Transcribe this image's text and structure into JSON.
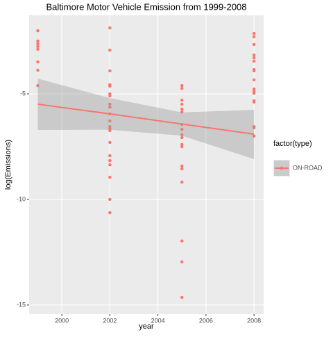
{
  "chart_data": {
    "type": "scatter",
    "title": "Baltimore Motor Vehicle Emission from 1999-2008",
    "x_label": "year",
    "y_label": "log(Emissions)",
    "legend_title": "factor(type)",
    "series": [
      {
        "name": "ON-ROAD",
        "color": "#F8766D",
        "x": [
          1999,
          1999,
          1999,
          1999,
          1999,
          1999,
          1999,
          1999,
          2002,
          2002,
          2002,
          2002,
          2002,
          2002,
          2002,
          2002,
          2002,
          2002,
          2002,
          2002,
          2002,
          2002,
          2002,
          2002,
          2002,
          2002,
          2002,
          2002,
          2002,
          2005,
          2005,
          2005,
          2005,
          2005,
          2005,
          2005,
          2005,
          2005,
          2005,
          2005,
          2005,
          2005,
          2005,
          2005,
          2005,
          2005,
          2005,
          2008,
          2008,
          2008,
          2008,
          2008,
          2008,
          2008,
          2008,
          2008,
          2008,
          2008,
          2008,
          2008,
          2008,
          2008,
          2008,
          2008
        ],
        "values": [
          -2.01,
          -2.5,
          -2.63,
          -2.76,
          -2.89,
          -3.49,
          -3.88,
          -4.61,
          -1.88,
          -2.93,
          -3.91,
          -4.57,
          -4.64,
          -5.0,
          -5.1,
          -5.49,
          -5.63,
          -5.95,
          -6.28,
          -6.55,
          -6.64,
          -6.74,
          -7.3,
          -7.93,
          -8.16,
          -8.36,
          -8.95,
          -10.0,
          -10.63,
          -4.61,
          -4.74,
          -5.3,
          -5.49,
          -5.72,
          -5.86,
          -6.45,
          -6.68,
          -6.94,
          -7.07,
          -7.4,
          -7.5,
          -8.42,
          -8.55,
          -9.18,
          -11.97,
          -12.96,
          -14.64,
          -2.14,
          -2.3,
          -2.66,
          -3.16,
          -3.29,
          -3.45,
          -3.85,
          -3.91,
          -4.34,
          -4.77,
          -4.87,
          -4.97,
          -5.33,
          -5.39,
          -6.55,
          -6.61,
          -7.0
        ]
      }
    ],
    "smooth": {
      "color": "#F8766D",
      "band_color": "#999999",
      "x": [
        1999,
        2002,
        2005,
        2008
      ],
      "y": [
        -5.49,
        -5.95,
        -6.43,
        -6.91
      ],
      "lower": [
        -6.71,
        -6.7,
        -6.98,
        -8.09
      ],
      "upper": [
        -4.28,
        -5.2,
        -5.88,
        -5.76
      ]
    },
    "xlim": [
      1998.64,
      2008.4
    ],
    "ylim": [
      -15.43,
      -1.28
    ],
    "xticks": [
      2000,
      2002,
      2004,
      2006,
      2008
    ],
    "yticks": [
      -15,
      -10,
      -5
    ],
    "grid": true,
    "legend_position": "right"
  }
}
